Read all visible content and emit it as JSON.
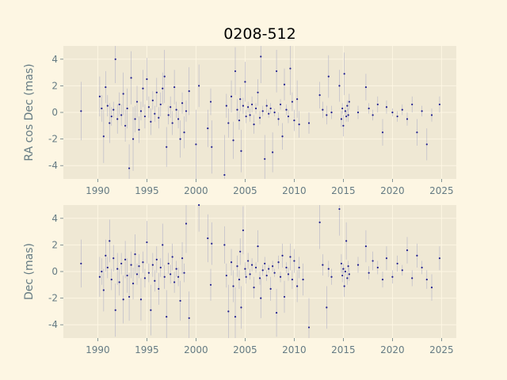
{
  "colors": {
    "figure_bg": "#fdf6e3",
    "axes_bg": "#efe8d4",
    "grid": "#fdf6e3",
    "text": "#657b83",
    "title": "#000000",
    "point": "#1f1f8f",
    "errorbar": "#b3b3c8"
  },
  "chart_data": [
    {
      "type": "scatter",
      "title": "0208-512",
      "xlabel": "",
      "ylabel": "RA cos Dec (mas)",
      "xlim": [
        1986.5,
        2026.5
      ],
      "ylim": [
        -5,
        5
      ],
      "xticks": [
        "1990",
        "1995",
        "2000",
        "2005",
        "2010",
        "2015",
        "2020",
        "2025"
      ],
      "yticks": [
        "-4",
        "-2",
        "0",
        "2",
        "4"
      ],
      "grid": true,
      "points": [
        [
          1988.3,
          0.1,
          2.2
        ],
        [
          1990.2,
          1.2,
          1.5
        ],
        [
          1990.4,
          0.3,
          1.0
        ],
        [
          1990.6,
          -1.8,
          2.0
        ],
        [
          1990.8,
          1.9,
          1.2
        ],
        [
          1991.0,
          0.5,
          0.8
        ],
        [
          1991.2,
          -0.8,
          1.5
        ],
        [
          1991.4,
          -0.3,
          0.7
        ],
        [
          1991.6,
          0.2,
          0.6
        ],
        [
          1991.8,
          4.0,
          1.8
        ],
        [
          1992.0,
          -0.5,
          1.1
        ],
        [
          1992.2,
          0.6,
          0.9
        ],
        [
          1992.4,
          -0.2,
          0.8
        ],
        [
          1992.6,
          1.4,
          1.6
        ],
        [
          1992.8,
          -1.0,
          1.2
        ],
        [
          1993.0,
          0.3,
          1.5
        ],
        [
          1993.2,
          -4.2,
          1.8
        ],
        [
          1993.4,
          2.6,
          2.0
        ],
        [
          1993.6,
          -2.0,
          2.4
        ],
        [
          1993.8,
          -0.5,
          1.0
        ],
        [
          1994.0,
          0.8,
          1.2
        ],
        [
          1994.2,
          -1.3,
          1.0
        ],
        [
          1994.4,
          0.1,
          0.7
        ],
        [
          1994.6,
          1.8,
          1.4
        ],
        [
          1994.8,
          -0.3,
          0.9
        ],
        [
          1995.0,
          2.5,
          1.6
        ],
        [
          1995.2,
          0.4,
          0.8
        ],
        [
          1995.4,
          -0.7,
          1.0
        ],
        [
          1995.6,
          0.9,
          0.7
        ],
        [
          1995.8,
          -0.1,
          0.6
        ],
        [
          1996.0,
          1.5,
          1.1
        ],
        [
          1996.2,
          -0.4,
          0.8
        ],
        [
          1996.4,
          0.6,
          0.9
        ],
        [
          1996.6,
          1.8,
          1.2
        ],
        [
          1996.8,
          2.7,
          2.0
        ],
        [
          1997.0,
          -2.6,
          1.5
        ],
        [
          1997.2,
          -0.2,
          0.7
        ],
        [
          1997.4,
          0.4,
          0.8
        ],
        [
          1997.6,
          -0.8,
          0.9
        ],
        [
          1997.8,
          1.9,
          1.3
        ],
        [
          1998.0,
          0.2,
          0.6
        ],
        [
          1998.2,
          -0.5,
          0.7
        ],
        [
          1998.4,
          -2.0,
          1.4
        ],
        [
          1998.6,
          0.7,
          0.8
        ],
        [
          1998.8,
          -1.5,
          1.2
        ],
        [
          1999.0,
          0.1,
          0.8
        ],
        [
          1999.3,
          1.6,
          1.8
        ],
        [
          2000.0,
          -2.4,
          2.6
        ],
        [
          2000.3,
          2.0,
          1.6
        ],
        [
          2001.2,
          -1.2,
          1.4
        ],
        [
          2001.5,
          0.8,
          1.0
        ],
        [
          2001.6,
          -2.6,
          2.0
        ],
        [
          2002.9,
          -4.7,
          3.0
        ],
        [
          2003.1,
          0.5,
          0.9
        ],
        [
          2003.3,
          -0.8,
          1.1
        ],
        [
          2003.6,
          1.2,
          1.2
        ],
        [
          2003.8,
          -2.1,
          1.4
        ],
        [
          2004.0,
          3.1,
          1.8
        ],
        [
          2004.2,
          0.2,
          0.8
        ],
        [
          2004.4,
          -0.6,
          0.7
        ],
        [
          2004.5,
          1.0,
          0.9
        ],
        [
          2004.6,
          -2.9,
          1.6
        ],
        [
          2004.8,
          0.5,
          0.6
        ],
        [
          2005.0,
          2.3,
          1.5
        ],
        [
          2005.1,
          -0.3,
          0.5
        ],
        [
          2005.3,
          0.4,
          0.4
        ],
        [
          2005.5,
          -0.2,
          0.5
        ],
        [
          2005.7,
          0.6,
          0.6
        ],
        [
          2005.9,
          -0.9,
          0.7
        ],
        [
          2006.1,
          0.3,
          0.4
        ],
        [
          2006.3,
          1.5,
          1.0
        ],
        [
          2006.5,
          -0.4,
          0.5
        ],
        [
          2006.6,
          4.2,
          2.0
        ],
        [
          2006.8,
          0.1,
          0.4
        ],
        [
          2007.0,
          -3.5,
          1.8
        ],
        [
          2007.2,
          0.5,
          0.5
        ],
        [
          2007.4,
          -0.1,
          0.3
        ],
        [
          2007.6,
          0.3,
          0.4
        ],
        [
          2007.8,
          -3.0,
          1.5
        ],
        [
          2008.0,
          0.0,
          0.3
        ],
        [
          2008.2,
          3.1,
          1.6
        ],
        [
          2008.4,
          -0.5,
          0.5
        ],
        [
          2008.6,
          0.6,
          0.4
        ],
        [
          2008.8,
          -1.8,
          1.0
        ],
        [
          2009.0,
          2.1,
          1.2
        ],
        [
          2009.2,
          0.2,
          0.4
        ],
        [
          2009.4,
          -0.3,
          0.5
        ],
        [
          2009.6,
          3.3,
          2.0
        ],
        [
          2009.8,
          0.8,
          0.7
        ],
        [
          2010.0,
          -0.6,
          0.8
        ],
        [
          2010.3,
          1.0,
          1.4
        ],
        [
          2010.5,
          -0.9,
          1.0
        ],
        [
          2011.5,
          -0.8,
          0.8
        ],
        [
          2012.6,
          1.3,
          1.0
        ],
        [
          2012.9,
          0.2,
          0.6
        ],
        [
          2013.3,
          -0.2,
          0.7
        ],
        [
          2013.5,
          2.7,
          1.6
        ],
        [
          2013.8,
          0.0,
          0.5
        ],
        [
          2014.6,
          2.0,
          1.2
        ],
        [
          2014.8,
          -0.5,
          0.6
        ],
        [
          2014.9,
          0.3,
          0.4
        ],
        [
          2015.0,
          -1.0,
          0.8
        ],
        [
          2015.1,
          2.9,
          1.6
        ],
        [
          2015.2,
          0.1,
          0.3
        ],
        [
          2015.3,
          -0.3,
          0.4
        ],
        [
          2015.4,
          0.5,
          0.4
        ],
        [
          2015.5,
          -0.2,
          0.5
        ],
        [
          2015.6,
          0.8,
          0.6
        ],
        [
          2016.5,
          0.0,
          0.5
        ],
        [
          2017.3,
          1.9,
          1.0
        ],
        [
          2017.6,
          0.3,
          0.4
        ],
        [
          2018.0,
          -0.2,
          0.4
        ],
        [
          2018.5,
          0.6,
          0.6
        ],
        [
          2019.0,
          -1.5,
          1.0
        ],
        [
          2019.4,
          0.4,
          0.5
        ],
        [
          2020.0,
          0.0,
          0.3
        ],
        [
          2020.5,
          -0.3,
          0.4
        ],
        [
          2021.0,
          0.2,
          0.4
        ],
        [
          2021.5,
          -0.5,
          0.5
        ],
        [
          2022.0,
          0.6,
          0.6
        ],
        [
          2022.5,
          -1.5,
          1.0
        ],
        [
          2023.0,
          0.1,
          0.4
        ],
        [
          2023.5,
          -2.4,
          1.2
        ],
        [
          2024.0,
          -0.2,
          0.5
        ],
        [
          2024.8,
          0.6,
          0.6
        ]
      ]
    },
    {
      "type": "scatter",
      "title": "",
      "xlabel": "",
      "ylabel": "Dec (mas)",
      "xlim": [
        1986.5,
        2026.5
      ],
      "ylim": [
        -5,
        5
      ],
      "xticks": [
        "1990",
        "1995",
        "2000",
        "2005",
        "2010",
        "2015",
        "2020",
        "2025"
      ],
      "yticks": [
        "-4",
        "-2",
        "0",
        "2",
        "4"
      ],
      "grid": true,
      "points": [
        [
          1988.3,
          0.6,
          1.8
        ],
        [
          1990.2,
          -0.4,
          1.5
        ],
        [
          1990.4,
          0.0,
          1.0
        ],
        [
          1990.6,
          -1.4,
          1.6
        ],
        [
          1990.8,
          1.2,
          1.2
        ],
        [
          1991.0,
          0.3,
          0.8
        ],
        [
          1991.2,
          2.3,
          1.6
        ],
        [
          1991.4,
          -0.6,
          0.8
        ],
        [
          1991.6,
          1.0,
          1.0
        ],
        [
          1991.8,
          -2.9,
          2.0
        ],
        [
          1992.0,
          0.2,
          1.2
        ],
        [
          1992.2,
          -0.8,
          1.0
        ],
        [
          1992.4,
          0.6,
          0.8
        ],
        [
          1992.6,
          -2.1,
          1.8
        ],
        [
          1992.8,
          0.9,
          1.4
        ],
        [
          1993.0,
          -0.3,
          1.3
        ],
        [
          1993.2,
          -1.9,
          1.8
        ],
        [
          1993.4,
          0.5,
          1.0
        ],
        [
          1993.6,
          -0.9,
          1.2
        ],
        [
          1993.8,
          1.3,
          1.5
        ],
        [
          1994.0,
          -0.2,
          0.8
        ],
        [
          1994.2,
          0.4,
          0.9
        ],
        [
          1994.4,
          -2.1,
          1.6
        ],
        [
          1994.6,
          0.7,
          0.8
        ],
        [
          1994.8,
          -0.5,
          0.7
        ],
        [
          1995.0,
          2.2,
          1.6
        ],
        [
          1995.2,
          -0.1,
          0.7
        ],
        [
          1995.4,
          -2.9,
          1.9
        ],
        [
          1995.6,
          0.5,
          0.9
        ],
        [
          1995.8,
          -0.7,
          0.8
        ],
        [
          1996.0,
          0.9,
          1.0
        ],
        [
          1996.2,
          -1.3,
          1.2
        ],
        [
          1996.4,
          0.3,
          0.7
        ],
        [
          1996.6,
          2.0,
          1.6
        ],
        [
          1996.8,
          -0.4,
          0.9
        ],
        [
          1997.0,
          -3.4,
          2.0
        ],
        [
          1997.2,
          0.6,
          0.8
        ],
        [
          1997.4,
          -0.2,
          0.7
        ],
        [
          1997.6,
          1.1,
          1.0
        ],
        [
          1997.8,
          -0.8,
          0.8
        ],
        [
          1998.0,
          0.2,
          0.6
        ],
        [
          1998.2,
          -0.4,
          0.7
        ],
        [
          1998.4,
          -2.2,
          1.5
        ],
        [
          1998.6,
          1.0,
          1.2
        ],
        [
          1998.8,
          -0.1,
          0.7
        ],
        [
          1999.0,
          3.6,
          2.2
        ],
        [
          1999.3,
          -3.5,
          2.0
        ],
        [
          2000.3,
          5.0,
          2.0
        ],
        [
          2001.2,
          2.5,
          1.8
        ],
        [
          2001.5,
          -1.0,
          1.2
        ],
        [
          2001.6,
          2.1,
          1.6
        ],
        [
          2002.9,
          2.0,
          1.4
        ],
        [
          2003.1,
          -0.3,
          0.9
        ],
        [
          2003.3,
          -3.0,
          2.0
        ],
        [
          2003.6,
          0.7,
          1.0
        ],
        [
          2003.8,
          -1.1,
          1.2
        ],
        [
          2004.0,
          -3.4,
          2.2
        ],
        [
          2004.2,
          0.4,
          0.8
        ],
        [
          2004.4,
          -0.6,
          0.7
        ],
        [
          2004.5,
          1.5,
          1.0
        ],
        [
          2004.6,
          -2.7,
          1.6
        ],
        [
          2004.8,
          3.1,
          1.8
        ],
        [
          2005.0,
          0.2,
          0.5
        ],
        [
          2005.1,
          -0.4,
          0.5
        ],
        [
          2005.3,
          0.8,
          0.6
        ],
        [
          2005.5,
          -0.2,
          0.4
        ],
        [
          2005.7,
          0.5,
          0.5
        ],
        [
          2005.9,
          -1.2,
          0.8
        ],
        [
          2006.1,
          0.3,
          0.4
        ],
        [
          2006.3,
          1.9,
          1.2
        ],
        [
          2006.5,
          -0.5,
          0.5
        ],
        [
          2006.6,
          -2.0,
          1.5
        ],
        [
          2006.8,
          0.1,
          0.4
        ],
        [
          2007.0,
          0.6,
          0.5
        ],
        [
          2007.2,
          -0.3,
          0.4
        ],
        [
          2007.4,
          0.2,
          0.3
        ],
        [
          2007.6,
          -1.3,
          0.9
        ],
        [
          2007.8,
          0.4,
          0.4
        ],
        [
          2008.0,
          -0.1,
          0.3
        ],
        [
          2008.2,
          -3.1,
          1.8
        ],
        [
          2008.4,
          0.7,
          0.5
        ],
        [
          2008.6,
          -0.4,
          0.4
        ],
        [
          2008.8,
          1.2,
          0.9
        ],
        [
          2009.0,
          -1.9,
          1.2
        ],
        [
          2009.2,
          0.3,
          0.4
        ],
        [
          2009.4,
          -0.2,
          0.5
        ],
        [
          2009.6,
          1.1,
          1.0
        ],
        [
          2009.8,
          -0.6,
          0.7
        ],
        [
          2010.0,
          0.8,
          0.9
        ],
        [
          2010.3,
          -1.1,
          1.2
        ],
        [
          2010.5,
          0.3,
          0.8
        ],
        [
          2010.9,
          -0.6,
          1.2
        ],
        [
          2011.5,
          -4.2,
          2.2
        ],
        [
          2012.6,
          3.7,
          2.0
        ],
        [
          2012.9,
          0.5,
          0.8
        ],
        [
          2013.3,
          -2.7,
          1.6
        ],
        [
          2013.5,
          0.2,
          0.6
        ],
        [
          2013.8,
          -0.4,
          0.6
        ],
        [
          2014.6,
          4.7,
          2.0
        ],
        [
          2014.8,
          0.6,
          0.7
        ],
        [
          2014.9,
          -0.3,
          0.5
        ],
        [
          2015.0,
          0.2,
          0.4
        ],
        [
          2015.1,
          -1.1,
          0.8
        ],
        [
          2015.2,
          0.0,
          0.3
        ],
        [
          2015.3,
          2.3,
          1.4
        ],
        [
          2015.4,
          -0.5,
          0.5
        ],
        [
          2015.5,
          0.4,
          0.4
        ],
        [
          2015.6,
          -0.2,
          0.5
        ],
        [
          2016.5,
          0.5,
          0.6
        ],
        [
          2017.3,
          1.9,
          1.2
        ],
        [
          2017.6,
          -0.1,
          0.5
        ],
        [
          2018.0,
          0.8,
          0.7
        ],
        [
          2018.5,
          0.3,
          0.5
        ],
        [
          2019.0,
          -0.6,
          0.6
        ],
        [
          2019.4,
          1.0,
          0.9
        ],
        [
          2020.0,
          -0.4,
          0.5
        ],
        [
          2020.5,
          0.6,
          0.6
        ],
        [
          2021.0,
          0.1,
          0.4
        ],
        [
          2021.5,
          1.6,
          1.0
        ],
        [
          2022.0,
          -0.5,
          0.6
        ],
        [
          2022.5,
          1.2,
          0.9
        ],
        [
          2023.0,
          0.3,
          0.5
        ],
        [
          2023.5,
          -0.6,
          0.7
        ],
        [
          2024.0,
          -1.2,
          1.0
        ],
        [
          2024.8,
          1.0,
          0.9
        ]
      ]
    }
  ]
}
